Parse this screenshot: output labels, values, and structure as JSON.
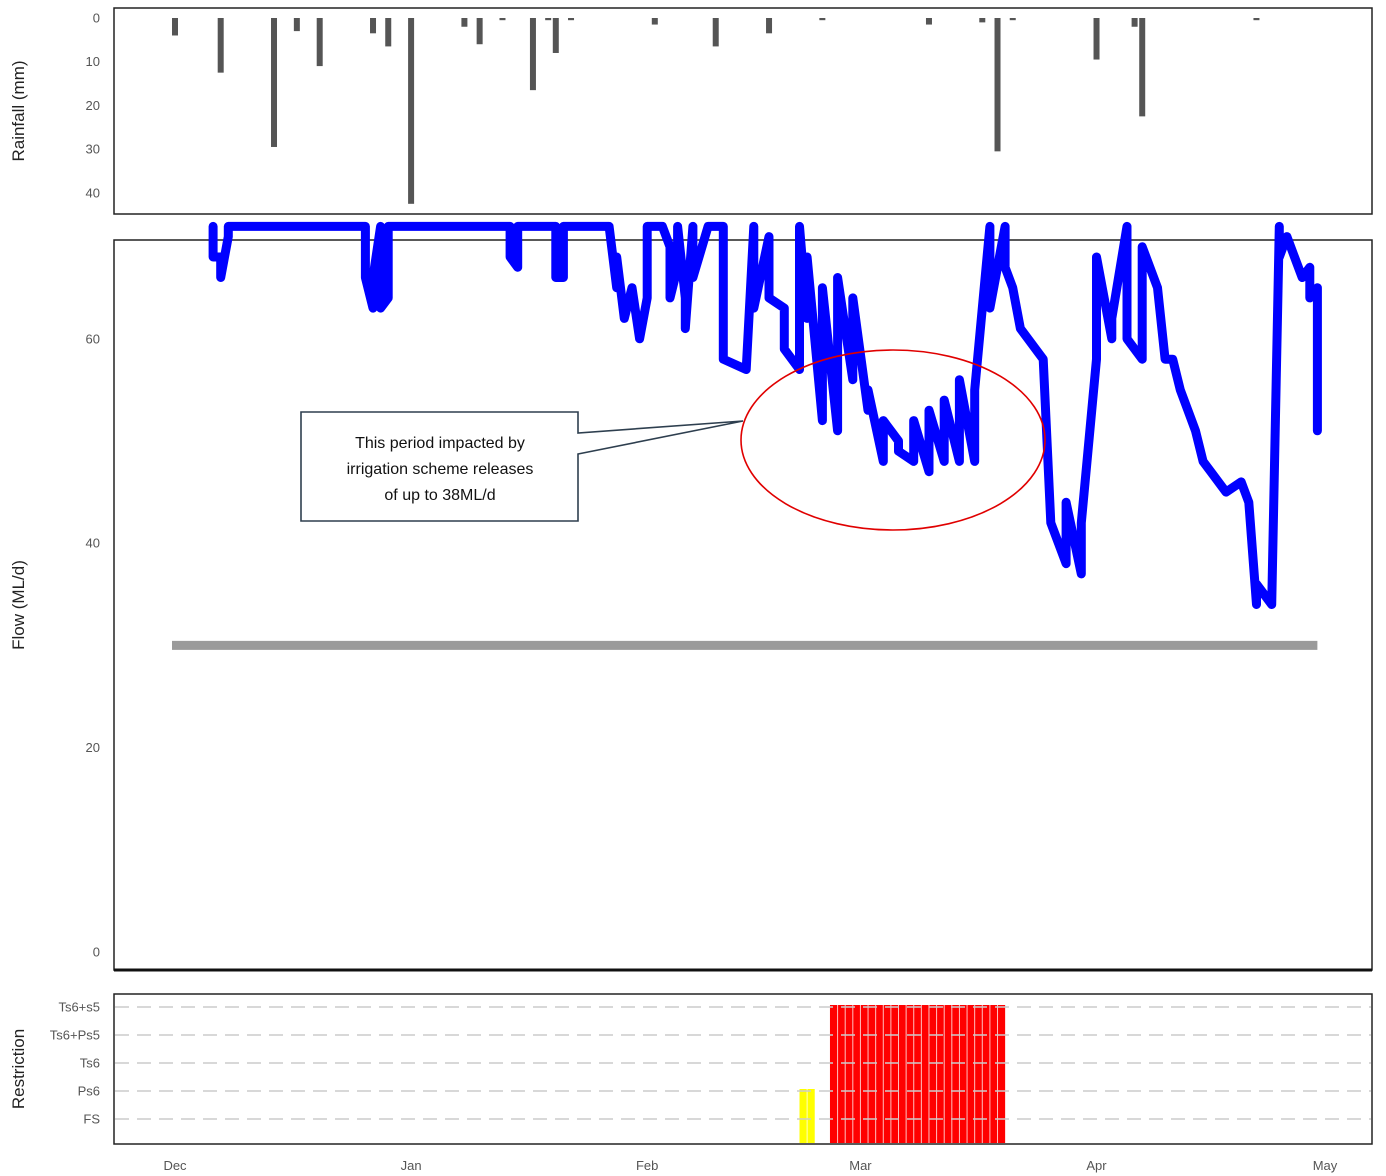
{
  "chart_data": [
    {
      "panel": "rainfall",
      "type": "bar",
      "ylabel": "Rainfall (mm)",
      "y_reversed": true,
      "ylim": [
        0,
        43
      ],
      "yticks": [
        "0",
        "10",
        "20",
        "30",
        "40"
      ],
      "bar_color": "#555555",
      "x": [
        "Dec 1",
        "Dec 7",
        "Dec 14",
        "Dec 17",
        "Dec 20",
        "Dec 27",
        "Dec 29",
        "Jan 1",
        "Jan 8",
        "Jan 10",
        "Jan 13",
        "Jan 17",
        "Jan 19",
        "Jan 20",
        "Jan 22",
        "Feb 2",
        "Feb 10",
        "Feb 17",
        "Feb 24",
        "Mar 10",
        "Mar 17",
        "Mar 19",
        "Mar 21",
        "Apr 1",
        "Apr 6",
        "Apr 7",
        "Apr 22"
      ],
      "values": [
        4,
        12.5,
        29.5,
        3,
        11,
        3.5,
        6.5,
        42.5,
        2,
        6,
        0.5,
        16.5,
        0.5,
        8,
        0.5,
        1.5,
        6.5,
        3.5,
        0.5,
        1.5,
        1,
        30.5,
        0.5,
        9.5,
        2,
        22.5,
        0.5
      ]
    },
    {
      "panel": "flow",
      "type": "line",
      "ylabel": "Flow (ML/d)",
      "ylim": [
        0,
        71
      ],
      "yticks": [
        "0",
        "20",
        "40",
        "60"
      ],
      "series": [
        {
          "color": "#0000ff",
          "x": [
            "Dec 6",
            "Dec 6",
            "Dec 7",
            "Dec 7",
            "Dec 8",
            "Dec 8",
            "Dec 26",
            "Dec 26",
            "Dec 27",
            "Dec 27",
            "Dec 28",
            "Dec 28",
            "Dec 29",
            "Dec 29",
            "Jan 14",
            "Jan 14",
            "Jan 15",
            "Jan 15",
            "Jan 20",
            "Jan 20",
            "Jan 21",
            "Jan 21",
            "Jan 27",
            "Jan 28",
            "Jan 28",
            "Jan 29",
            "Jan 30",
            "Jan 31",
            "Feb 1",
            "Feb 1",
            "Feb 3",
            "Feb 4",
            "Feb 4",
            "Feb 5",
            "Feb 5",
            "Feb 6",
            "Feb 6",
            "Feb 7",
            "Feb 7",
            "Feb 9",
            "Feb 11",
            "Feb 11",
            "Feb 14",
            "Feb 15",
            "Feb 15",
            "Feb 17",
            "Feb 17",
            "Feb 19",
            "Feb 19",
            "Feb 21",
            "Feb 21",
            "Feb 22",
            "Feb 22",
            "Feb 24",
            "Feb 24",
            "Feb 26",
            "Feb 26",
            "Feb 28",
            "Feb 28",
            "Mar 2",
            "Mar 2",
            "Mar 4",
            "Mar 4",
            "Mar 6",
            "Mar 6",
            "Mar 8",
            "Mar 8",
            "Mar 10",
            "Mar 10",
            "Mar 12",
            "Mar 12",
            "Mar 14",
            "Mar 14",
            "Mar 16",
            "Mar 16",
            "Mar 18",
            "Mar 18",
            "Mar 20",
            "Mar 20",
            "Mar 21",
            "Mar 22",
            "Mar 25",
            "Mar 26",
            "Mar 28",
            "Mar 28",
            "Mar 30",
            "Mar 30",
            "Apr 1",
            "Apr 1",
            "Apr 3",
            "Apr 3",
            "Apr 5",
            "Apr 5",
            "Apr 7",
            "Apr 7",
            "Apr 9",
            "Apr 10",
            "Apr 11",
            "Apr 12",
            "Apr 13",
            "Apr 14",
            "Apr 15",
            "Apr 16",
            "Apr 18",
            "Apr 20",
            "Apr 21",
            "Apr 22",
            "Apr 22",
            "Apr 24",
            "Apr 25",
            "Apr 25",
            "Apr 26",
            "Apr 27",
            "Apr 28",
            "Apr 29",
            "Apr 29",
            "Apr 30",
            "Apr 30"
          ],
          "y": [
            71,
            68,
            68,
            66,
            70,
            71,
            71,
            66,
            63,
            66,
            71,
            63,
            64,
            71,
            71,
            68,
            67,
            71,
            71,
            66,
            66,
            71,
            71,
            65,
            68,
            62,
            65,
            60,
            64,
            71,
            71,
            69,
            64,
            67,
            71,
            64,
            61,
            71,
            66,
            71,
            71,
            58,
            57,
            71,
            63,
            70,
            64,
            63,
            59,
            57,
            71,
            62,
            68,
            52,
            65,
            51,
            66,
            56,
            64,
            53,
            55,
            48,
            52,
            50,
            49,
            48,
            52,
            47,
            53,
            48,
            54,
            48,
            56,
            48,
            55,
            71,
            63,
            71,
            67,
            65,
            61,
            58,
            42,
            38,
            44,
            37,
            42,
            58,
            68,
            60,
            62,
            71,
            60,
            58,
            69,
            65,
            58,
            58,
            55,
            53,
            51,
            48,
            47,
            45,
            46,
            44,
            34,
            36,
            34,
            71,
            68,
            70,
            68,
            66,
            67,
            64,
            65,
            51
          ]
        }
      ],
      "threshold": {
        "value": 30,
        "x_start": "Dec 1",
        "x_end": "Apr 30",
        "color": "#9a9a9a"
      },
      "annotation": {
        "text": [
          "This period impacted by",
          "irrigation scheme releases",
          "of up to 38ML/d"
        ],
        "ellipse_color": "#e00000",
        "box_border_color": "#2e3f4f"
      }
    },
    {
      "panel": "restriction",
      "type": "bar",
      "ylabel": "Restriction",
      "categories": [
        "FS",
        "Ps6",
        "Ts6",
        "Ts6+Ps5",
        "Ts6+s5"
      ],
      "segments": [
        {
          "x_start": "Feb 21",
          "x_end": "Feb 23",
          "level": "Ps6",
          "color": "#ffff00"
        },
        {
          "x_start": "Feb 25",
          "x_end": "Mar 20",
          "level": "Ts6+s5",
          "color": "#ff0000"
        }
      ],
      "x_tick_labels": [
        "Dec",
        "Jan",
        "Feb",
        "Mar",
        "Apr",
        "May"
      ]
    }
  ]
}
